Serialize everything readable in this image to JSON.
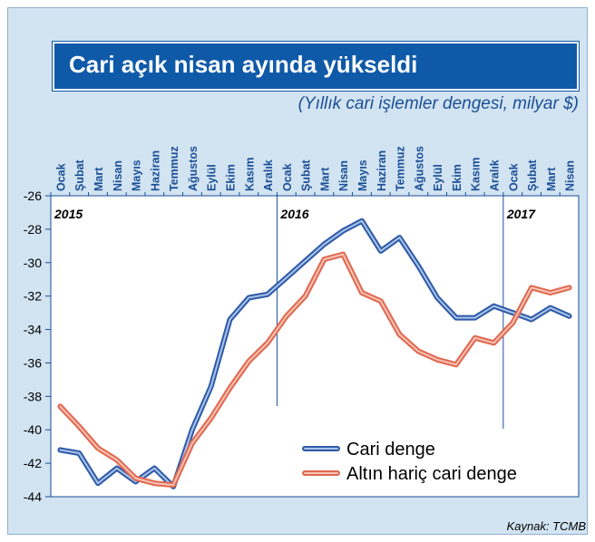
{
  "header": {
    "title": "Cari açık nisan ayında yükseldi",
    "subtitle": "(Yıllık cari işlemler dengesi, milyar $)"
  },
  "source": "Kaynak: TCMB",
  "colors": {
    "title_bg": "#0f5aa8",
    "frame_bg": "#d2e3f1",
    "series_blue": "#3a66b0",
    "series_red": "#e06a52"
  },
  "chart_data": {
    "type": "line",
    "title": "Cari açık nisan ayında yükseldi",
    "subtitle": "(Yıllık cari işlemler dengesi, milyar $)",
    "xlabel": "",
    "ylabel": "",
    "x": [
      "Ocak",
      "Şubat",
      "Mart",
      "Nisan",
      "Mayıs",
      "Haziran",
      "Temmuz",
      "Ağustos",
      "Eylül",
      "Ekim",
      "Kasım",
      "Aralık",
      "Ocak",
      "Şubat",
      "Mart",
      "Nisan",
      "Mayıs",
      "Haziran",
      "Temmuz",
      "Ağustos",
      "Eylül",
      "Ekim",
      "Kasım",
      "Aralık",
      "Ocak",
      "Şubat",
      "Mart",
      "Nisan"
    ],
    "year_labels": [
      "2015",
      "2016",
      "2017"
    ],
    "yticks": [
      -26,
      -28,
      -30,
      -32,
      -34,
      -36,
      -38,
      -40,
      -42,
      -44
    ],
    "ylim": [
      -44,
      -26
    ],
    "grid": false,
    "legend": "bottom-right",
    "series": [
      {
        "name": "Cari denge",
        "values": [
          -41.2,
          -41.4,
          -43.2,
          -42.3,
          -43.1,
          -42.3,
          -43.4,
          -40.0,
          -37.4,
          -33.4,
          -32.1,
          -31.9,
          -30.9,
          -29.9,
          -28.9,
          -28.1,
          -27.5,
          -29.3,
          -28.5,
          -30.2,
          -32.1,
          -33.3,
          -33.3,
          -32.6,
          -33.0,
          -33.4,
          -32.7,
          -33.2
        ]
      },
      {
        "name": "Altın hariç cari denge",
        "values": [
          -38.6,
          -39.8,
          -41.1,
          -41.8,
          -42.9,
          -43.2,
          -43.3,
          -40.8,
          -39.3,
          -37.5,
          -35.9,
          -34.8,
          -33.2,
          -32.0,
          -29.8,
          -29.5,
          -31.8,
          -32.3,
          -34.3,
          -35.3,
          -35.8,
          -36.1,
          -34.5,
          -34.8,
          -33.6,
          -31.5,
          -31.8,
          -31.5
        ]
      }
    ]
  }
}
